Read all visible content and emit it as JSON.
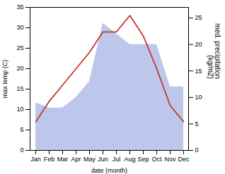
{
  "chart_data": {
    "type": "line",
    "categories": [
      "Jan",
      "Feb",
      "Mar",
      "Apr",
      "May",
      "Jun",
      "Jul",
      "Aug",
      "Sep",
      "Oct",
      "Nov",
      "Dec"
    ],
    "series": [
      {
        "type": "area",
        "axis": "y2",
        "color": "#bdc7ec",
        "values": [
          9,
          8,
          8,
          10,
          13,
          24,
          22,
          20,
          20,
          20,
          12,
          12
        ]
      },
      {
        "type": "line",
        "color": "#c0392b",
        "values": [
          7,
          12,
          16,
          20,
          24,
          29,
          29,
          33,
          28,
          20,
          11,
          7
        ]
      }
    ],
    "xlabel": "date (month)",
    "ylabel": "max temp (C)",
    "y2label": "med. precipitation\n(kg/m2)",
    "ylim": [
      0,
      35
    ],
    "yticks": [
      0,
      5,
      10,
      15,
      20,
      25,
      30,
      35
    ],
    "y2lim": [
      0,
      27
    ],
    "y2ticks": [
      0,
      5,
      10,
      15,
      20,
      25
    ],
    "grid": false
  }
}
